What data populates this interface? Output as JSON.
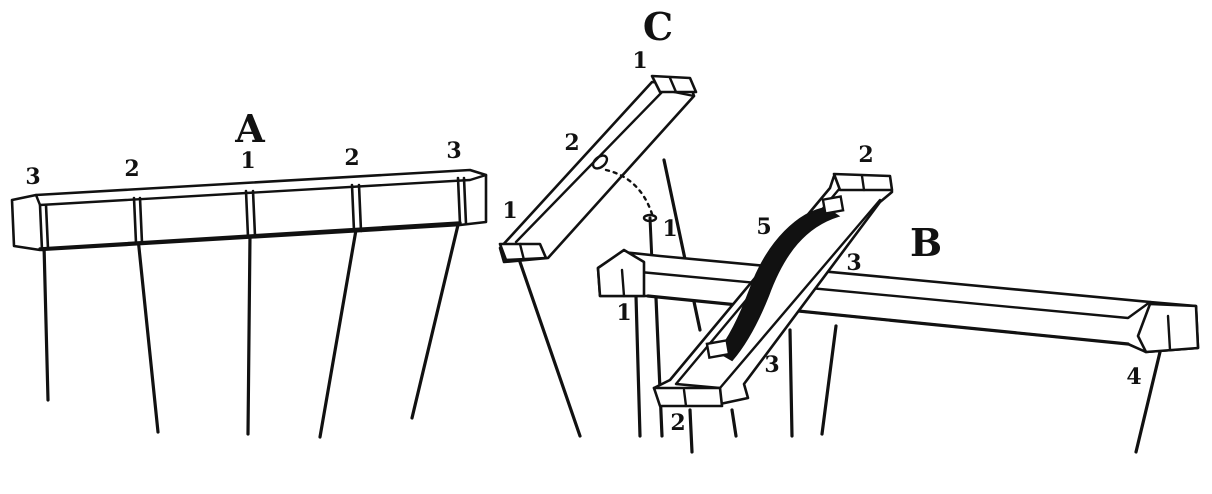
{
  "figure": {
    "A": {
      "letter": "A",
      "numbers": [
        "3",
        "2",
        "1",
        "2",
        "3"
      ]
    },
    "C": {
      "letter": "C",
      "numbers": [
        "1",
        "2",
        "1",
        "1"
      ]
    },
    "B": {
      "letter": "B",
      "numbers": [
        "2",
        "5",
        "3",
        "1",
        "3",
        "2",
        "4"
      ]
    },
    "colors": {
      "ink": "#111111",
      "paper": "#ffffff"
    }
  }
}
